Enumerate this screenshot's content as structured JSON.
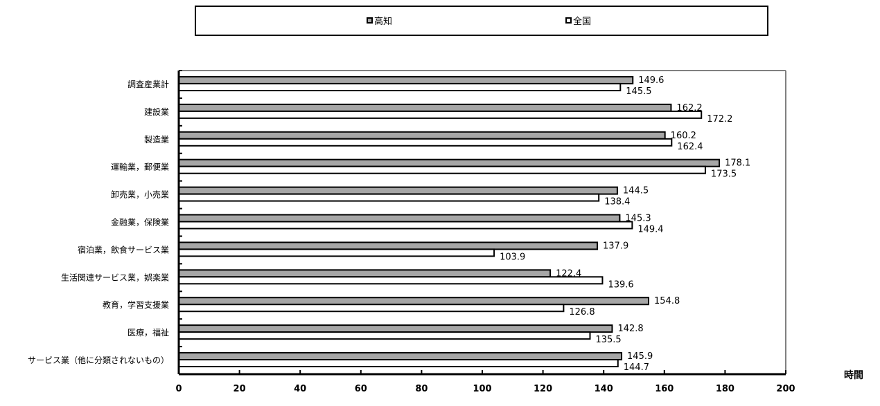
{
  "chart_data": {
    "type": "bar",
    "orientation": "horizontal",
    "categories": [
      "調査産業計",
      "建設業",
      "製造業",
      "運輸業，郵便業",
      "卸売業，小売業",
      "金融業，保険業",
      "宿泊業，飲食サービス業",
      "生活関連サービス業，娯楽業",
      "教育，学習支援業",
      "医療，福祉",
      "サービス業（他に分類されないもの）"
    ],
    "series": [
      {
        "name": "高知",
        "values": [
          149.6,
          162.2,
          160.2,
          178.1,
          144.5,
          145.3,
          137.9,
          122.4,
          154.8,
          142.8,
          145.9
        ],
        "color": "#a6a6a6"
      },
      {
        "name": "全国",
        "values": [
          145.5,
          172.2,
          162.4,
          173.5,
          138.4,
          149.4,
          103.9,
          139.6,
          126.8,
          135.5,
          144.7
        ],
        "color": "#ffffff"
      }
    ],
    "xlim": [
      0,
      200
    ],
    "xticks": [
      "0",
      "20",
      "40",
      "60",
      "80",
      "100",
      "120",
      "140",
      "160",
      "180",
      "200"
    ],
    "xlabel": "時間",
    "value_labels": [
      [
        "149.6",
        "162.2",
        "160.2",
        "178.1",
        "144.5",
        "145.3",
        "137.9",
        "122.4",
        "154.8",
        "142.8",
        "145.9"
      ],
      [
        "145.5",
        "172.2",
        "162.4",
        "173.5",
        "138.4",
        "149.4",
        "103.9",
        "139.6",
        "126.8",
        "135.5",
        "144.7"
      ]
    ],
    "legend": {
      "position": "top",
      "entries": [
        "高知",
        "全国"
      ]
    },
    "grid": false
  }
}
